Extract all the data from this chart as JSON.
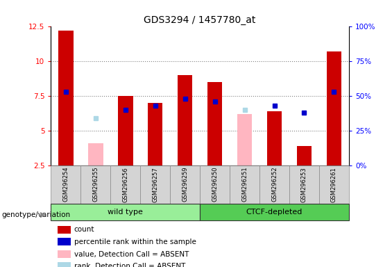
{
  "title": "GDS3294 / 1457780_at",
  "samples": [
    "GSM296254",
    "GSM296255",
    "GSM296256",
    "GSM296257",
    "GSM296259",
    "GSM296250",
    "GSM296251",
    "GSM296252",
    "GSM296253",
    "GSM296261"
  ],
  "groups": [
    "wild type",
    "wild type",
    "wild type",
    "wild type",
    "wild type",
    "CTCF-depleted",
    "CTCF-depleted",
    "CTCF-depleted",
    "CTCF-depleted",
    "CTCF-depleted"
  ],
  "count_values": [
    12.2,
    null,
    7.5,
    7.0,
    9.0,
    8.5,
    null,
    6.4,
    3.9,
    10.7
  ],
  "rank_values": [
    7.8,
    null,
    6.5,
    6.8,
    7.3,
    7.1,
    null,
    6.8,
    6.3,
    7.8
  ],
  "absent_value_values": [
    null,
    4.1,
    null,
    null,
    null,
    null,
    6.2,
    null,
    null,
    null
  ],
  "absent_rank_values": [
    null,
    5.9,
    null,
    null,
    null,
    null,
    6.5,
    null,
    null,
    null
  ],
  "ylim_left": [
    2.5,
    12.5
  ],
  "ylim_right": [
    0,
    100
  ],
  "yticks_left": [
    2.5,
    5.0,
    7.5,
    10.0,
    12.5
  ],
  "yticks_right": [
    0,
    25,
    50,
    75,
    100
  ],
  "ytick_labels_right": [
    "0%",
    "25%",
    "50%",
    "75%",
    "100%"
  ],
  "count_color": "#CC0000",
  "rank_color": "#0000CC",
  "absent_value_color": "#FFB6C1",
  "absent_rank_color": "#ADD8E6",
  "wild_type_color": "#99ee99",
  "ctcf_color": "#55cc55",
  "legend_items": [
    "count",
    "percentile rank within the sample",
    "value, Detection Call = ABSENT",
    "rank, Detection Call = ABSENT"
  ],
  "legend_colors": [
    "#CC0000",
    "#0000CC",
    "#FFB6C1",
    "#ADD8E6"
  ]
}
